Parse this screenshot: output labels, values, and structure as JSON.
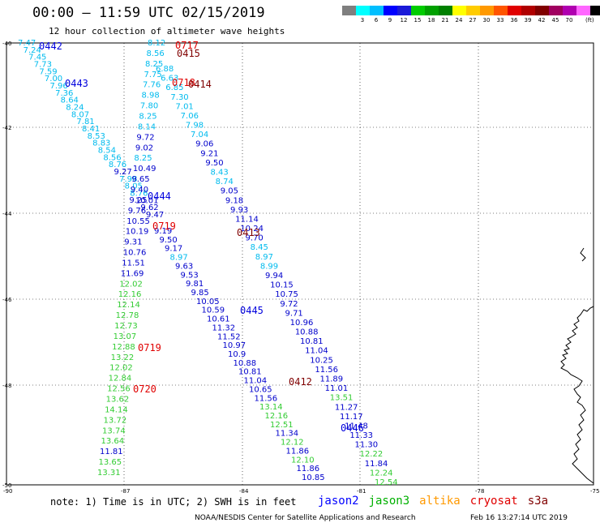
{
  "title": "00:00 — 11:59 UTC 02/15/2019",
  "subtitle": "12 hour collection of altimeter wave heights",
  "legend": {
    "colors": [
      "#7f7f7f",
      "#00ffff",
      "#00bfff",
      "#0000ff",
      "#1a1ad8",
      "#00cc00",
      "#00a000",
      "#008000",
      "#ffff00",
      "#ffcc00",
      "#ff9900",
      "#ff5500",
      "#e00000",
      "#b00000",
      "#800000",
      "#a00060",
      "#b000b0",
      "#ff66ff",
      "#000000"
    ],
    "labels": [
      "3",
      "6",
      "9",
      "12",
      "15",
      "18",
      "21",
      "24",
      "27",
      "30",
      "33",
      "36",
      "39",
      "42",
      "45",
      "70"
    ],
    "unit": "(ft)"
  },
  "axes": {
    "lat_labels": [
      "-40",
      "-42",
      "-44",
      "-46",
      "-48",
      "-50"
    ],
    "lon_labels": [
      "-90",
      "-87",
      "-84",
      "-81",
      "-78",
      "-75"
    ]
  },
  "passes": [
    {
      "label": "0442",
      "sat": "jason2"
    },
    {
      "label": "0443",
      "sat": "jason2"
    },
    {
      "label": "0444",
      "sat": "jason2"
    },
    {
      "label": "0445",
      "sat": "jason2"
    },
    {
      "label": "0446",
      "sat": "jason2"
    },
    {
      "label": "0717",
      "sat": "cryosat"
    },
    {
      "label": "0718",
      "sat": "cryosat"
    },
    {
      "label": "0719",
      "sat": "cryosat"
    },
    {
      "label": "0719",
      "sat": "cryosat"
    },
    {
      "label": "0720",
      "sat": "cryosat"
    },
    {
      "label": "0415",
      "sat": "s3a"
    },
    {
      "label": "0414",
      "sat": "s3a"
    },
    {
      "label": "0413",
      "sat": "s3a"
    },
    {
      "label": "0412",
      "sat": "s3a"
    }
  ],
  "tracks": {
    "A": [
      "7.47",
      "7.24",
      "7.45",
      "7.73",
      "7.59",
      "7.00",
      "7.96",
      "7.36",
      "8.64",
      "8.24",
      "8.07",
      "7.81",
      "8.41",
      "8.53",
      "8.83",
      "8.54",
      "8.56",
      "8.76",
      "9.27",
      "7.98",
      "8.05",
      "8.76",
      "10.01",
      "9.62",
      "9.47"
    ],
    "B": [
      "8.12",
      "8.56",
      "8.25",
      "7.75",
      "7.76",
      "8.98",
      "7.80",
      "8.25",
      "8.14",
      "9.72",
      "9.02",
      "8.25",
      "10.49",
      "9.65",
      "9.40",
      "9.25",
      "9.76",
      "10.55",
      "10.19",
      "9.31",
      "10.76",
      "11.51",
      "11.69",
      "12.02",
      "12.16",
      "12.14",
      "12.78",
      "12.73",
      "13.07",
      "12.88",
      "13.22",
      "12.02",
      "12.84",
      "12.56",
      "13.62",
      "14.14",
      "13.72",
      "13.74",
      "13.64",
      "11.81",
      "13.65",
      "13.31"
    ],
    "C": [
      "6.88",
      "6.63",
      "6.85",
      "7.30",
      "7.01",
      "7.06",
      "7.98",
      "7.04",
      "9.06",
      "9.21",
      "9.50",
      "8.43",
      "8.74",
      "9.05",
      "9.18",
      "9.93",
      "11.14",
      "10.24",
      "9.70",
      "8.45",
      "8.97",
      "8.99",
      "9.94",
      "10.15",
      "10.75",
      "9.72",
      "9.71",
      "10.96",
      "10.88",
      "10.81",
      "11.04",
      "10.25",
      "11.56",
      "11.89",
      "11.01",
      "13.51",
      "11.27",
      "11.17",
      "11.48",
      "11.33",
      "11.30",
      "12.22",
      "11.84",
      "12.24",
      "12.54"
    ],
    "D": [
      "9.19",
      "9.50",
      "9.17",
      "8.97",
      "9.63",
      "9.53",
      "9.81",
      "9.85",
      "10.05",
      "10.59",
      "10.61",
      "11.32",
      "11.52",
      "10.97",
      "10.9",
      "10.88",
      "10.81",
      "11.04",
      "10.65",
      "11.56",
      "13.14",
      "12.16",
      "12.51",
      "11.34",
      "12.12",
      "11.86",
      "12.10",
      "11.86",
      "10.85"
    ]
  },
  "note": "note: 1) Time is in UTC; 2) SWH is in feet",
  "satellites": [
    {
      "name": "jason2",
      "color": "#0000ff"
    },
    {
      "name": "jason3",
      "color": "#00b000"
    },
    {
      "name": "altika",
      "color": "#ff9900"
    },
    {
      "name": "cryosat",
      "color": "#e00000"
    },
    {
      "name": "s3a",
      "color": "#800000"
    }
  ],
  "credit": "NOAA/NESDIS Center for Satellite Applications and Research",
  "stamp": "Feb 16 13:27:14 UTC 2019"
}
